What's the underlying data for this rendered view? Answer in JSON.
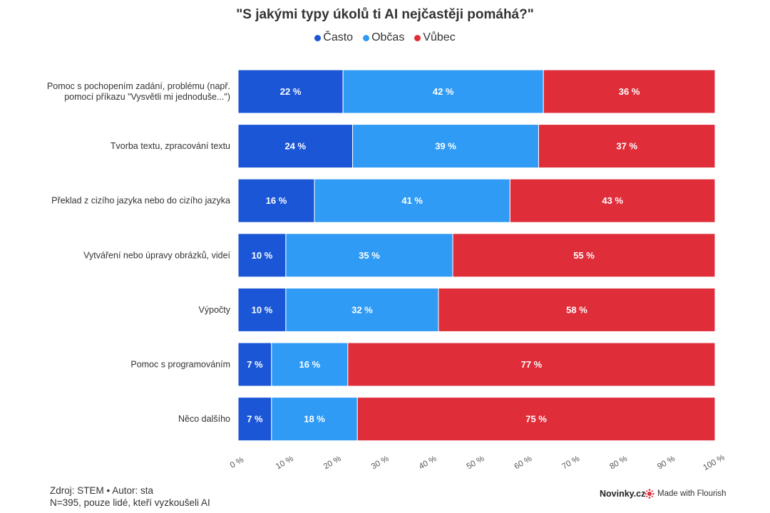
{
  "colors": {
    "casto": "#1a56d6",
    "obcas": "#2f9bf5",
    "vubec": "#df2d3a",
    "label": "#ffffff",
    "axis": "#555555"
  },
  "chart_data": {
    "type": "bar",
    "orientation": "horizontal",
    "stacked": true,
    "title": "\"S jakými typy úkolů ti AI nejčastěji pomáhá?\"",
    "legend_position": "top-center",
    "categories": [
      "Pomoc s pochopením zadání, problému (např. pomocí příkazu \"Vysvětli mi jednoduše...\")",
      "Tvorba textu, zpracování textu",
      "Překlad z cizího jazyka nebo do cizího jazyka",
      "Vytváření nebo úpravy obrázků, videí",
      "Výpočty",
      "Pomoc s programováním",
      "Něco dalšího"
    ],
    "category_lines": [
      [
        "Pomoc s pochopením zadání, problému (např.",
        "pomocí příkazu \"Vysvětli mi jednoduše...\")"
      ],
      [
        "Tvorba textu, zpracování textu"
      ],
      [
        "Překlad z cizího jazyka nebo do cizího jazyka"
      ],
      [
        "Vytváření nebo úpravy obrázků, videí"
      ],
      [
        "Výpočty"
      ],
      [
        "Pomoc s programováním"
      ],
      [
        "Něco dalšího"
      ]
    ],
    "series": [
      {
        "name": "Často",
        "color_key": "casto",
        "values": [
          22,
          24,
          16,
          10,
          10,
          7,
          7
        ]
      },
      {
        "name": "Občas",
        "color_key": "obcas",
        "values": [
          42,
          39,
          41,
          35,
          32,
          16,
          18
        ]
      },
      {
        "name": "Vůbec",
        "color_key": "vubec",
        "values": [
          36,
          37,
          43,
          55,
          58,
          77,
          75
        ]
      }
    ],
    "value_suffix": " %",
    "xlim": [
      0,
      100
    ],
    "x_ticks": [
      0,
      10,
      20,
      30,
      40,
      50,
      60,
      70,
      80,
      90,
      100
    ],
    "x_tick_labels": [
      "0 %",
      "10 %",
      "20 %",
      "30 %",
      "40 %",
      "50 %",
      "60 %",
      "70 %",
      "80 %",
      "90 %",
      "100 %"
    ],
    "grid": false
  },
  "footer": {
    "source": "Zdroj: STEM • Autor: sta",
    "note": "N=395, pouze lidé, kteří vyzkoušeli AI",
    "brand": "Novinky.cz",
    "flourish": "Made with Flourish"
  }
}
